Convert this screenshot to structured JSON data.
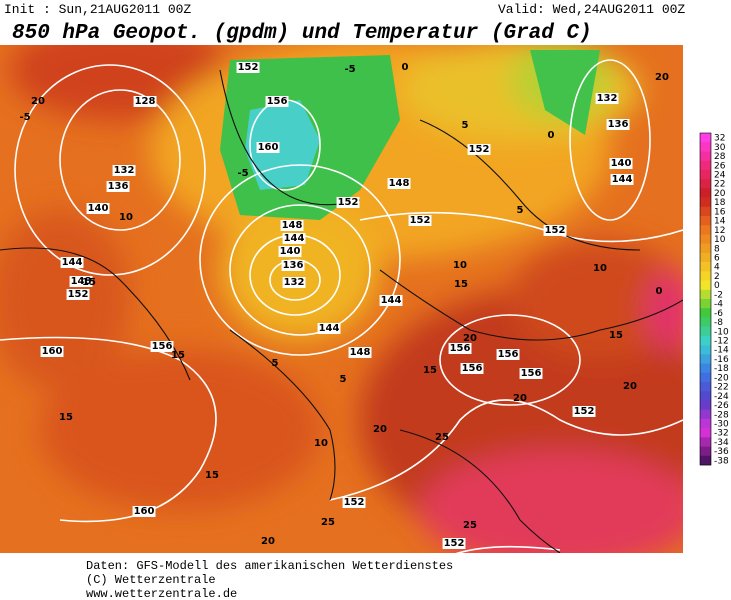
{
  "header": {
    "init": "Init : Sun,21AUG2011 00Z",
    "valid": "Valid: Wed,24AUG2011 00Z",
    "title": "850 hPa Geopot. (gpdm) und Temperatur (Grad C)"
  },
  "legend": {
    "ticks": [
      32,
      30,
      28,
      26,
      24,
      22,
      20,
      18,
      16,
      14,
      12,
      10,
      8,
      6,
      4,
      2,
      0,
      -2,
      -4,
      -6,
      -8,
      -10,
      -12,
      -14,
      -16,
      -18,
      -20,
      -22,
      -24,
      -26,
      -28,
      -30,
      -32,
      -34,
      -36,
      -38
    ]
  },
  "map": {
    "labels": [
      "152",
      "128",
      "156",
      "160",
      "132",
      "136",
      "140",
      "144",
      "148",
      "152",
      "148",
      "144",
      "140",
      "136",
      "132",
      "144",
      "148",
      "152",
      "160",
      "156",
      "15",
      "156",
      "156",
      "156",
      "156",
      "152",
      "152",
      "160",
      "152",
      "152",
      "152",
      "148",
      "152",
      "144",
      "132",
      "136",
      "140",
      "144",
      "-5",
      "0",
      "5",
      "10",
      "15",
      "20",
      "20",
      "20",
      "25",
      "25",
      "25",
      "20",
      "15",
      "15",
      "10",
      "5",
      "0",
      "20",
      "20",
      "-5",
      "10",
      "15",
      "20",
      "15",
      "0",
      "5",
      "-5",
      "5",
      "10",
      "15"
    ]
  },
  "footer": {
    "lines": [
      "Daten: GFS-Modell des amerikanischen Wetterdienstes",
      "(C) Wetterzentrale",
      "www.wetterzentrale.de"
    ]
  }
}
